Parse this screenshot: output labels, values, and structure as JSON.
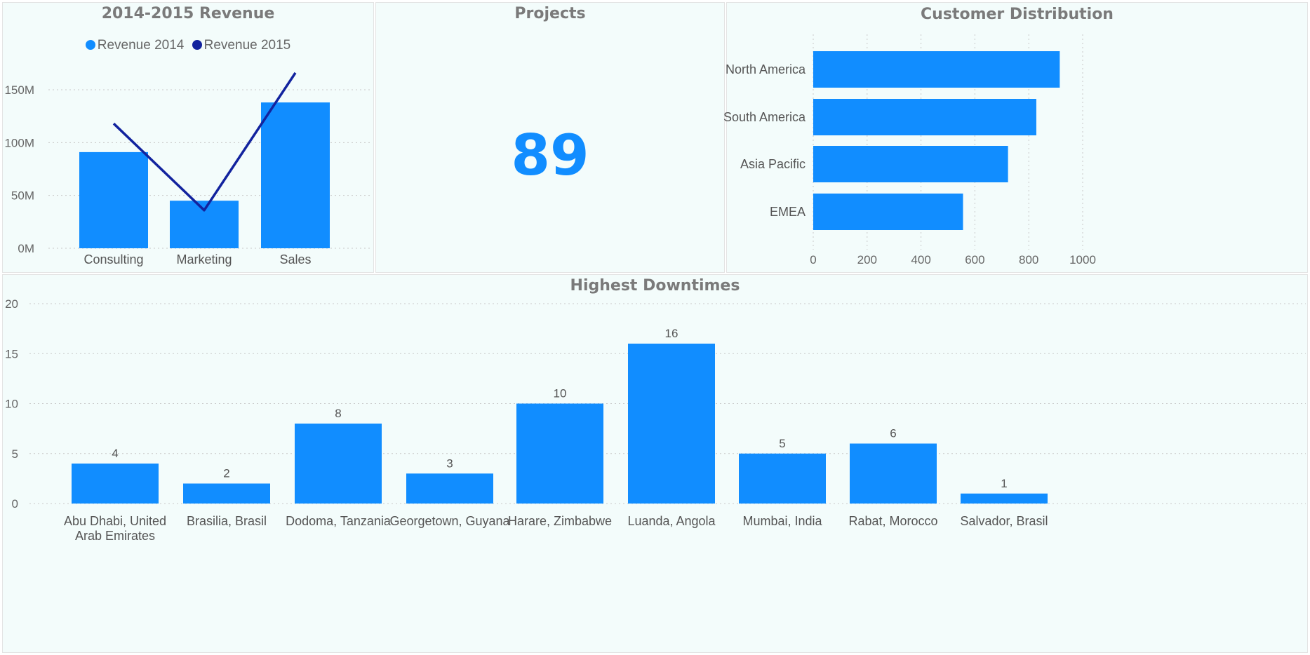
{
  "colors": {
    "bar": "#118dff",
    "line": "#12239e",
    "grid": "#c8c8c8",
    "panel_bg": "#f3fcfb"
  },
  "revenue": {
    "title": "2014-2015 Revenue",
    "legend": [
      {
        "label": "Revenue 2014",
        "color": "#118dff"
      },
      {
        "label": "Revenue 2015",
        "color": "#12239e"
      }
    ],
    "y_ticks": [
      "0M",
      "50M",
      "100M",
      "150M"
    ]
  },
  "projects": {
    "title": "Projects",
    "value": "89"
  },
  "customers": {
    "title": "Customer Distribution",
    "x_ticks": [
      "0",
      "200",
      "400",
      "600",
      "800",
      "1000"
    ]
  },
  "downtimes": {
    "title": "Highest Downtimes",
    "y_ticks": [
      "0",
      "5",
      "10",
      "15",
      "20"
    ]
  },
  "chart_data": [
    {
      "type": "bar",
      "title": "2014-2015 Revenue",
      "categories": [
        "Consulting",
        "Marketing",
        "Sales"
      ],
      "series": [
        {
          "name": "Revenue 2014",
          "kind": "bar",
          "values": [
            91,
            45,
            138
          ]
        },
        {
          "name": "Revenue 2015",
          "kind": "line",
          "values": [
            118,
            36,
            166
          ]
        }
      ],
      "ylim": [
        0,
        180
      ],
      "y_unit": "M",
      "grid": true,
      "legend_position": "top-center"
    },
    {
      "type": "bar",
      "orientation": "horizontal",
      "title": "Customer Distribution",
      "categories": [
        "North America",
        "South America",
        "Asia Pacific",
        "EMEA"
      ],
      "values": [
        915,
        828,
        723,
        556
      ],
      "xlim": [
        0,
        1000
      ],
      "grid": true
    },
    {
      "type": "bar",
      "title": "Highest Downtimes",
      "categories": [
        "Abu Dhabi, United Arab Emirates",
        "Brasilia, Brasil",
        "Dodoma, Tanzania",
        "Georgetown, Guyana",
        "Harare, Zimbabwe",
        "Luanda, Angola",
        "Mumbai, India",
        "Rabat, Morocco",
        "Salvador, Brasil"
      ],
      "values": [
        4,
        2,
        8,
        3,
        10,
        16,
        5,
        6,
        1
      ],
      "ylim": [
        0,
        20
      ],
      "data_labels": true,
      "grid": true
    }
  ]
}
